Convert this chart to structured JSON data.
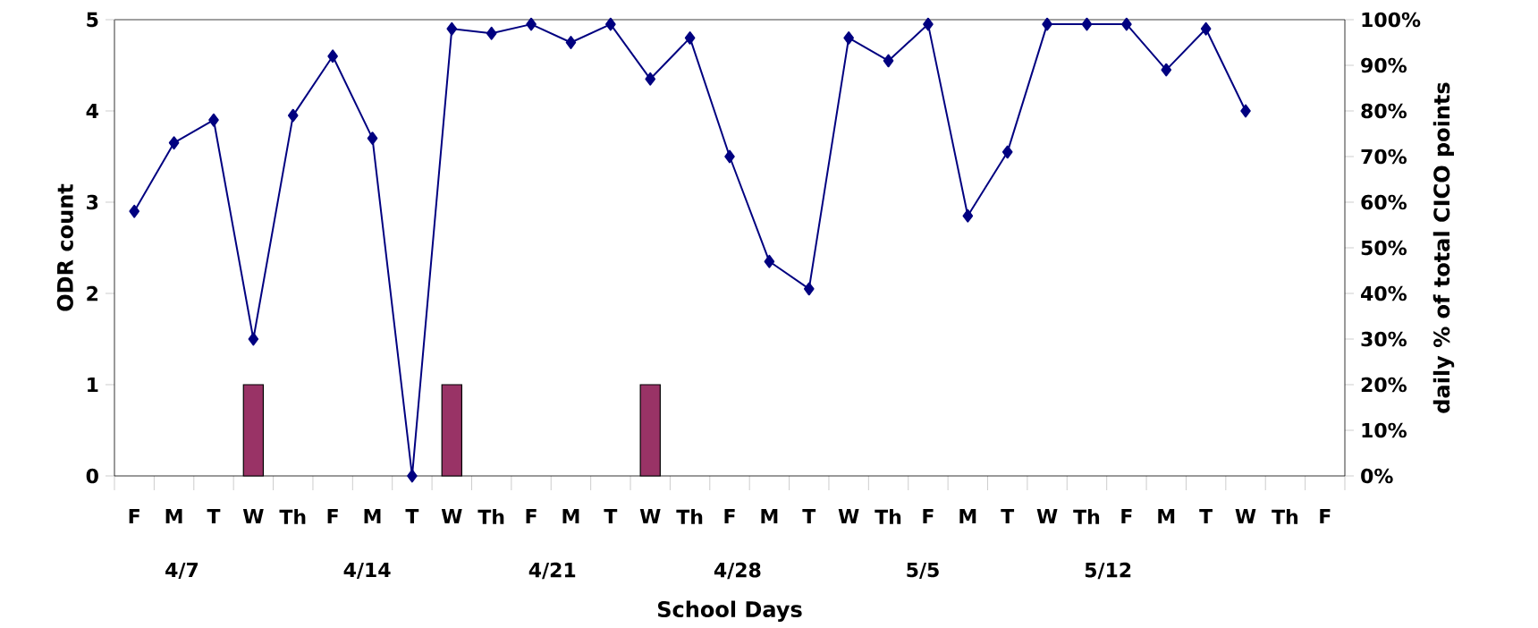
{
  "chart_data": {
    "type": "bar",
    "xlabel": "School Days",
    "ylabel": "ODR count",
    "y2label": "daily % of total CICO points",
    "categories": [
      "F",
      "M",
      "T",
      "W",
      "Th",
      "F",
      "M",
      "T",
      "W",
      "Th",
      "F",
      "M",
      "T",
      "W",
      "Th",
      "F",
      "M",
      "T",
      "W",
      "Th",
      "F",
      "M",
      "T",
      "W",
      "Th",
      "F",
      "M",
      "T",
      "W",
      "Th",
      "F"
    ],
    "series": [
      {
        "color": "#993366",
        "values": [
          null,
          null,
          null,
          1,
          null,
          null,
          null,
          null,
          1,
          null,
          null,
          null,
          null,
          1,
          null,
          null,
          null,
          null,
          null,
          null,
          null,
          null,
          null,
          null,
          null,
          null,
          null,
          null,
          null,
          null,
          null
        ]
      },
      {
        "type": "line",
        "axis": "y2",
        "color": "#000080",
        "values": [
          58,
          73,
          78,
          30,
          79,
          92,
          74,
          0,
          98,
          97,
          99,
          95,
          99,
          87,
          96,
          70,
          47,
          41,
          96,
          91,
          99,
          57,
          71,
          99,
          99,
          99,
          89,
          98,
          80,
          null,
          null
        ]
      }
    ],
    "marker": "diamond",
    "ylim": [
      0,
      5
    ],
    "yticks": [
      0,
      1,
      2,
      3,
      4,
      5
    ],
    "y2lim": [
      0,
      100
    ],
    "y2ticks": [
      {
        "value": 0,
        "label": "0%"
      },
      {
        "value": 10,
        "label": "10%"
      },
      {
        "value": 20,
        "label": "20%"
      },
      {
        "value": 30,
        "label": "30%"
      },
      {
        "value": 40,
        "label": "40%"
      },
      {
        "value": 50,
        "label": "50%"
      },
      {
        "value": 60,
        "label": "60%"
      },
      {
        "value": 70,
        "label": "70%"
      },
      {
        "value": 80,
        "label": "80%"
      },
      {
        "value": 90,
        "label": "90%"
      },
      {
        "value": 100,
        "label": "100%"
      }
    ],
    "annotations": [
      "4/7",
      "4/14",
      "4/21",
      "4/28",
      "5/5",
      "5/12"
    ]
  }
}
